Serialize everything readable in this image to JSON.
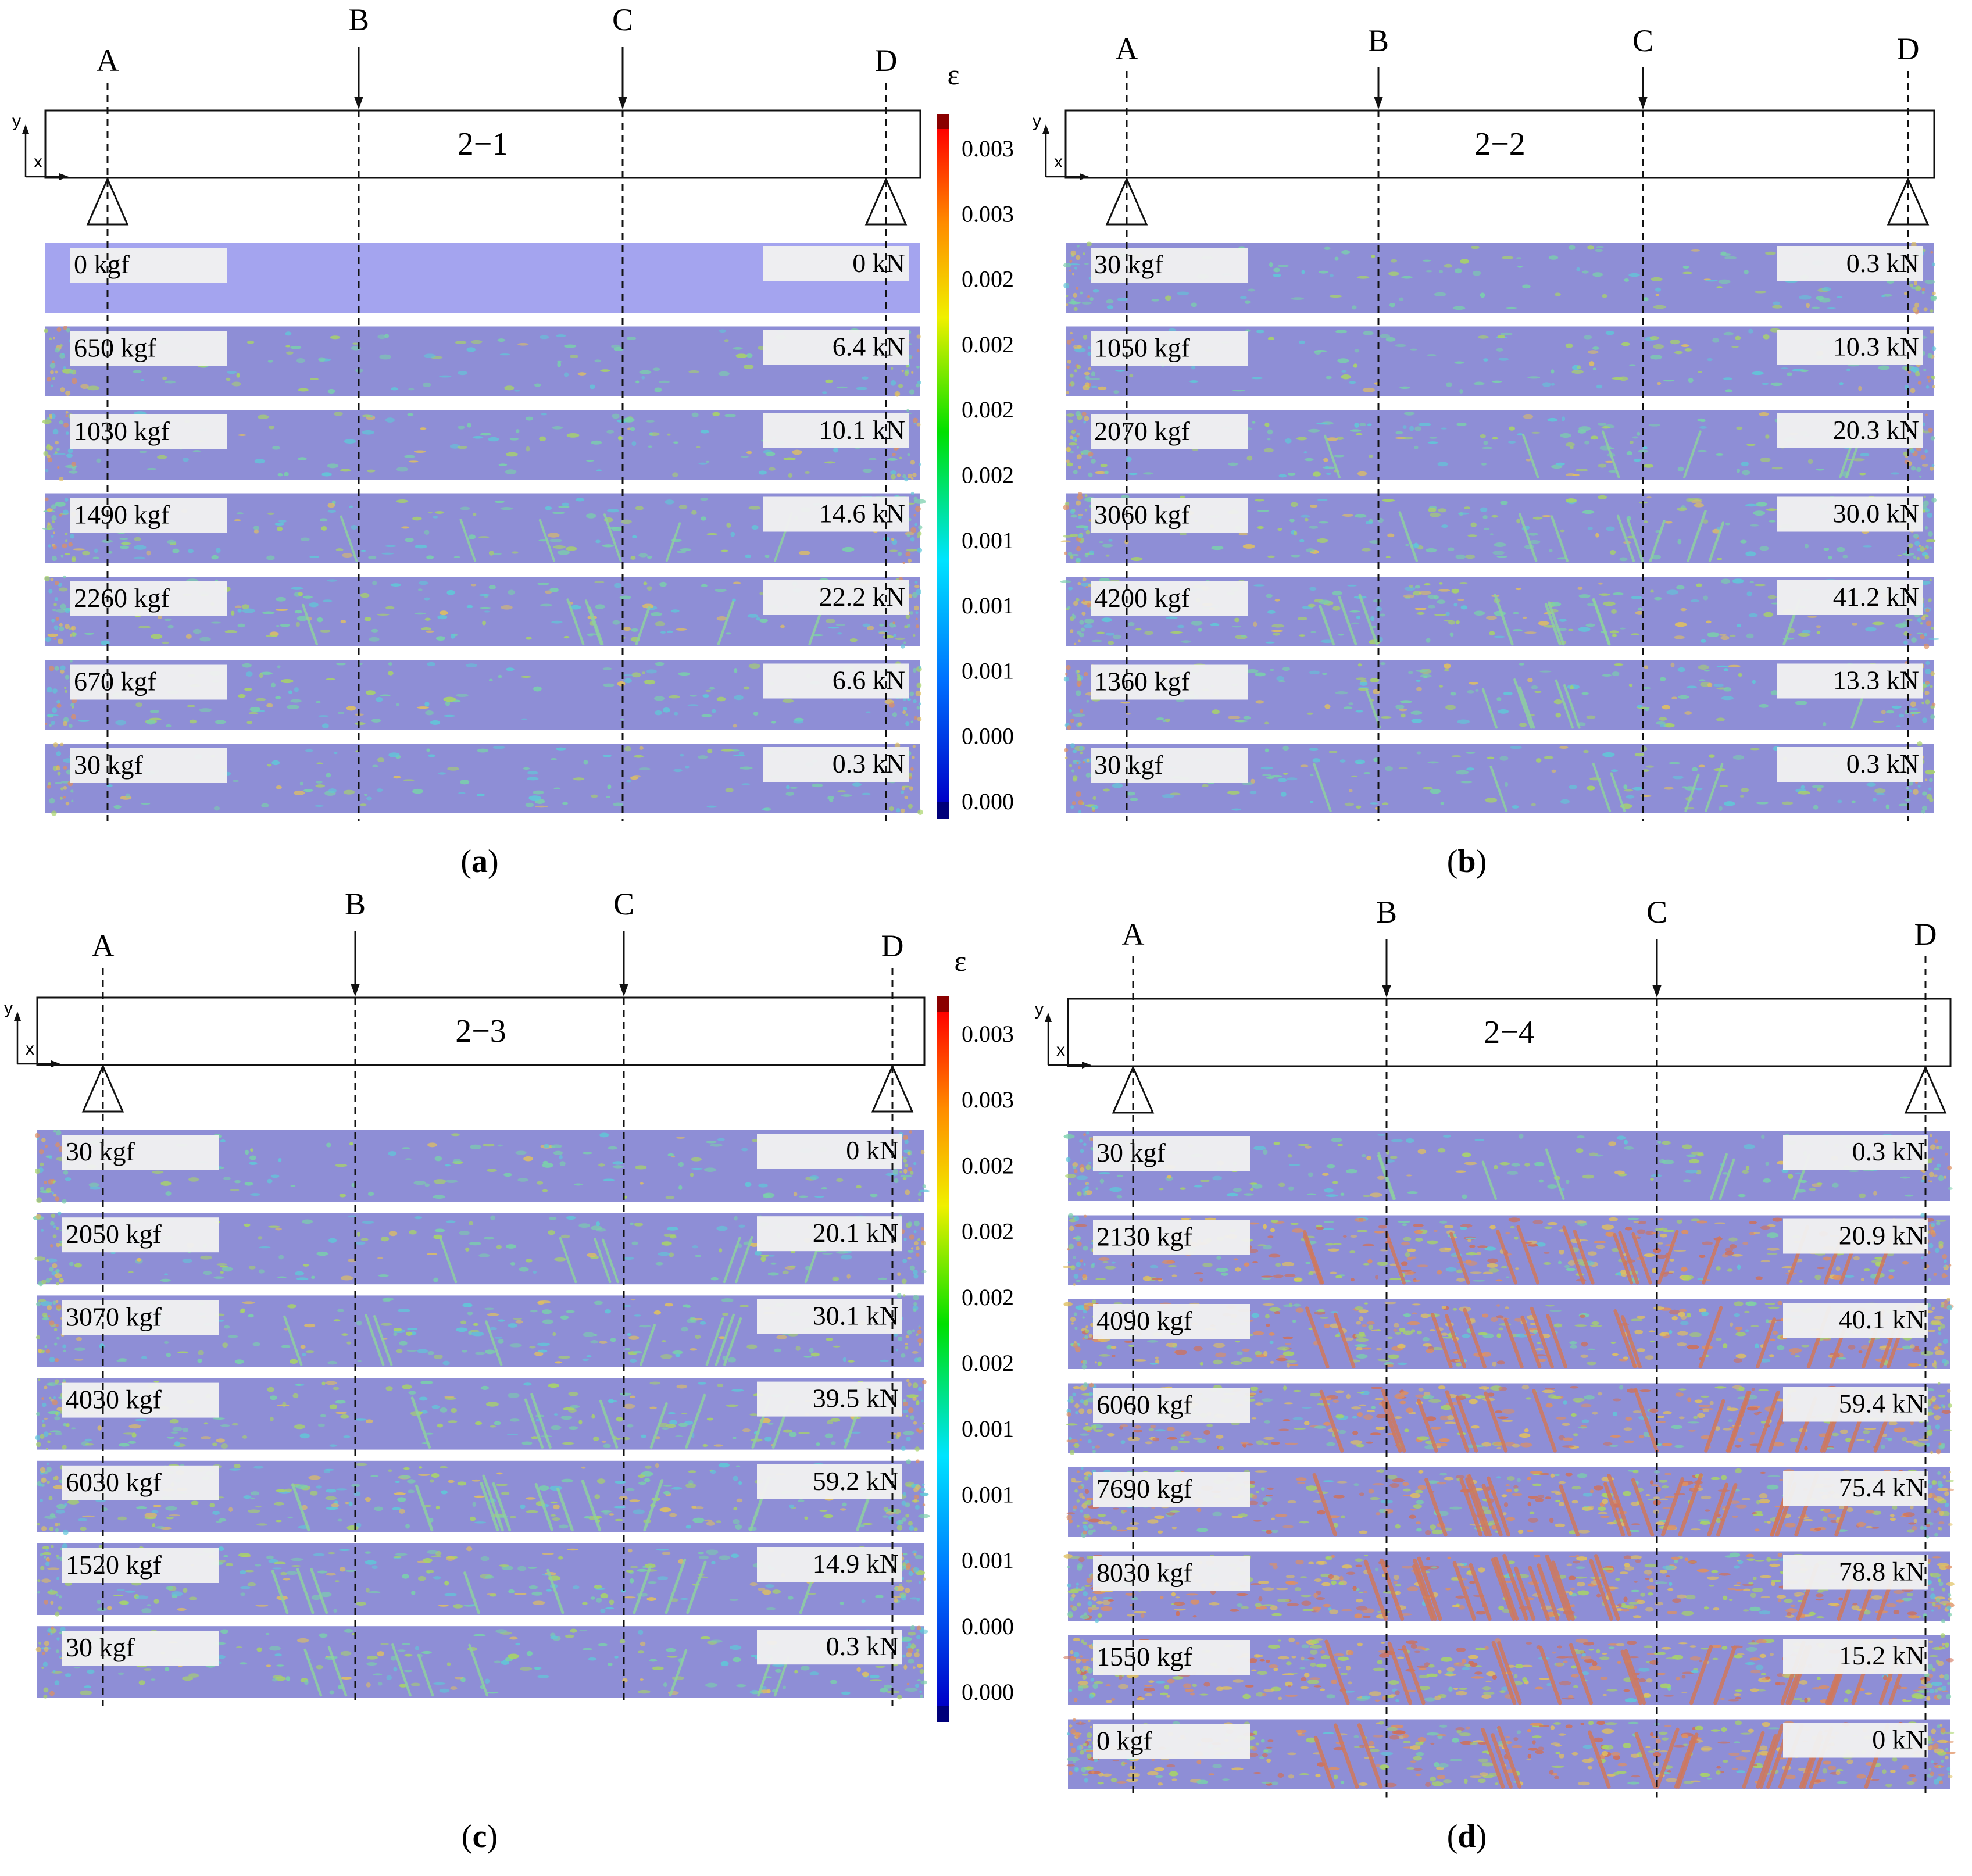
{
  "figure": {
    "colors": {
      "beam_strain_base": "#8e8ed6",
      "beam_strain_zero": "#a4a4ef",
      "colorbar_top": "#8b0000",
      "colorbar_bottom": "#00007a"
    },
    "colorbars": [
      {
        "symbol": "ε",
        "ticks": [
          "0.003",
          "0.003",
          "0.002",
          "0.002",
          "0.002",
          "0.002",
          "0.001",
          "0.001",
          "0.001",
          "0.000",
          "0.000"
        ]
      },
      {
        "symbol": "ε",
        "ticks": [
          "0.003",
          "0.003",
          "0.002",
          "0.002",
          "0.002",
          "0.002",
          "0.001",
          "0.001",
          "0.001",
          "0.000",
          "0.000"
        ]
      }
    ],
    "panels": [
      {
        "caption": "a",
        "beam_label": "2−1",
        "section_labels": [
          "A",
          "B",
          "C",
          "D"
        ],
        "axis_x": "x",
        "axis_y": "y",
        "stages": [
          {
            "kgf": "0 kgf",
            "kn": "0 kN",
            "intensity": 0.0
          },
          {
            "kgf": "650  kgf",
            "kn": "6.4 kN",
            "intensity": 0.15
          },
          {
            "kgf": "1030  kgf",
            "kn": "10.1 kN",
            "intensity": 0.2
          },
          {
            "kgf": "1490 kgf",
            "kn": "14.6 kN",
            "intensity": 0.25
          },
          {
            "kgf": "2260  kgf",
            "kn": "22.2 kN",
            "intensity": 0.32
          },
          {
            "kgf": "670  kgf",
            "kn": "6.6 kN",
            "intensity": 0.22
          },
          {
            "kgf": "30  kgf",
            "kn": "0.3 kN",
            "intensity": 0.2
          }
        ]
      },
      {
        "caption": "b",
        "beam_label": "2−2",
        "section_labels": [
          "A",
          "B",
          "C",
          "D"
        ],
        "axis_x": "x",
        "axis_y": "y",
        "stages": [
          {
            "kgf": "30 kgf",
            "kn": "0.3 kN",
            "intensity": 0.2
          },
          {
            "kgf": "1050 kgf",
            "kn": "10.3 kN",
            "intensity": 0.22
          },
          {
            "kgf": "2070 kgf",
            "kn": "20.3 kN",
            "intensity": 0.28
          },
          {
            "kgf": "3060 kgf",
            "kn": "30.0 kN",
            "intensity": 0.35
          },
          {
            "kgf": "4200 kgf",
            "kn": "41.2 kN",
            "intensity": 0.42
          },
          {
            "kgf": "1360 kgf",
            "kn": "13.3 kN",
            "intensity": 0.3
          },
          {
            "kgf": "30 kgf",
            "kn": "0.3 kN",
            "intensity": 0.28
          }
        ]
      },
      {
        "caption": "c",
        "beam_label": "2−3",
        "section_labels": [
          "A",
          "B",
          "C",
          "D"
        ],
        "axis_x": "x",
        "axis_y": "y",
        "stages": [
          {
            "kgf": "30 kgf",
            "kn": "0 kN",
            "intensity": 0.2
          },
          {
            "kgf": "2050  kgf",
            "kn": "20.1 kN",
            "intensity": 0.3
          },
          {
            "kgf": "3070  kgf",
            "kn": "30.1 kN",
            "intensity": 0.35
          },
          {
            "kgf": "4030 kgf",
            "kn": "39.5 kN",
            "intensity": 0.42
          },
          {
            "kgf": "6030  kgf",
            "kn": "59.2 kN",
            "intensity": 0.5
          },
          {
            "kgf": "1520  kgf",
            "kn": "14.9 kN",
            "intensity": 0.42
          },
          {
            "kgf": "30  kgf",
            "kn": "0.3 kN",
            "intensity": 0.35
          }
        ]
      },
      {
        "caption": "d",
        "beam_label": "2−4",
        "section_labels": [
          "A",
          "B",
          "C",
          "D"
        ],
        "axis_x": "x",
        "axis_y": "y",
        "stages": [
          {
            "kgf": "30 kgf",
            "kn": "0.3 kN",
            "intensity": 0.32
          },
          {
            "kgf": "2130 kgf",
            "kn": "20.9 kN",
            "intensity": 0.75
          },
          {
            "kgf": "4090 kgf",
            "kn": "40.1 kN",
            "intensity": 0.8
          },
          {
            "kgf": "6060 kgf",
            "kn": "59.4 kN",
            "intensity": 0.85
          },
          {
            "kgf": "7690 kgf",
            "kn": "75.4 kN",
            "intensity": 0.9
          },
          {
            "kgf": "8030 kgf",
            "kn": "78.8 kN",
            "intensity": 0.95
          },
          {
            "kgf": "1550 kgf",
            "kn": "15.2 kN",
            "intensity": 0.9
          },
          {
            "kgf": "0 kgf",
            "kn": "0 kN",
            "intensity": 0.9
          }
        ]
      }
    ]
  }
}
